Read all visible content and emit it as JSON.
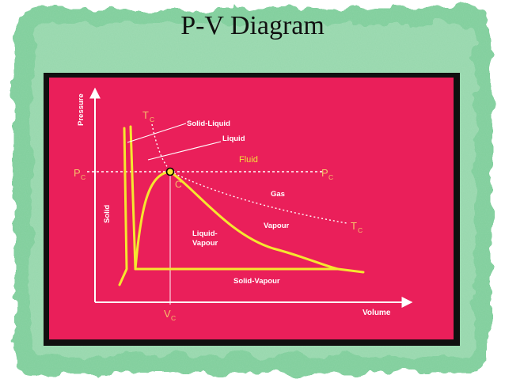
{
  "slide": {
    "title": "P-V Diagram"
  },
  "colors": {
    "background_green": "#7fce9b",
    "panel": "#ea1f5a",
    "frame": "#101010",
    "curve": "#f5e72f",
    "axis": "#ffffff",
    "label": "#ffffff",
    "accent_label": "#f5c26b",
    "fluid_label": "#f2e23a"
  },
  "diagram": {
    "axis_labels": {
      "pressure": "Pressure",
      "volume": "Volume",
      "solid": "Solid"
    },
    "critical": {
      "tc_top": {
        "main": "T",
        "sub": "C"
      },
      "tc_right": {
        "main": "T",
        "sub": "C"
      },
      "pc_left": {
        "main": "P",
        "sub": "C"
      },
      "pc_right": {
        "main": "P",
        "sub": "C"
      },
      "vc": {
        "main": "V",
        "sub": "C"
      },
      "point": "C"
    },
    "region_labels": {
      "solid_liquid": "Solid-Liquid",
      "liquid": "Liquid",
      "fluid": "Fluid",
      "gas": "Gas",
      "vapour": "Vapour",
      "liquid_vapour_line1": "Liquid-",
      "liquid_vapour_line2": "Vapour",
      "solid_vapour": "Solid-Vapour"
    }
  }
}
